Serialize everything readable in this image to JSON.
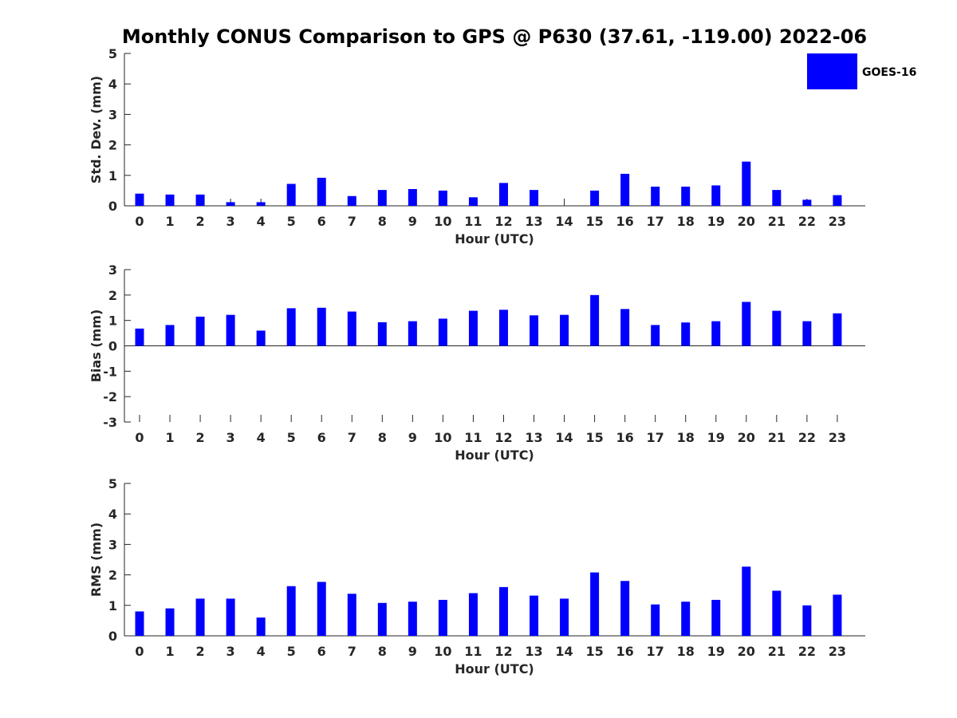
{
  "figure": {
    "title": "Monthly CONUS Comparison to GPS @ P630 (37.61, -119.00) 2022-06",
    "legend": {
      "label": "GOES-16",
      "color": "#0000ff",
      "placement": "top-right"
    }
  },
  "chart_data": [
    {
      "type": "bar",
      "xlabel": "Hour (UTC)",
      "ylabel": "Std. Dev. (mm)",
      "ylim": [
        0,
        5
      ],
      "yticks": [
        0,
        1,
        2,
        3,
        4,
        5
      ],
      "categories": [
        "0",
        "1",
        "2",
        "3",
        "4",
        "5",
        "6",
        "7",
        "8",
        "9",
        "10",
        "11",
        "12",
        "13",
        "14",
        "15",
        "16",
        "17",
        "18",
        "19",
        "20",
        "21",
        "22",
        "23"
      ],
      "series": [
        {
          "name": "GOES-16",
          "color": "#0000ff",
          "values": [
            0.4,
            0.37,
            0.37,
            0.12,
            0.12,
            0.72,
            0.92,
            0.32,
            0.52,
            0.55,
            0.5,
            0.28,
            0.75,
            0.52,
            0.0,
            0.5,
            1.05,
            0.63,
            0.63,
            0.67,
            1.45,
            0.52,
            0.2,
            0.35
          ]
        }
      ]
    },
    {
      "type": "bar",
      "xlabel": "Hour (UTC)",
      "ylabel": "Bias (mm)",
      "ylim": [
        -3,
        3
      ],
      "yticks": [
        -3,
        -2,
        -1,
        0,
        1,
        2,
        3
      ],
      "categories": [
        "0",
        "1",
        "2",
        "3",
        "4",
        "5",
        "6",
        "7",
        "8",
        "9",
        "10",
        "11",
        "12",
        "13",
        "14",
        "15",
        "16",
        "17",
        "18",
        "19",
        "20",
        "21",
        "22",
        "23"
      ],
      "series": [
        {
          "name": "GOES-16",
          "color": "#0000ff",
          "values": [
            0.68,
            0.82,
            1.15,
            1.22,
            0.6,
            1.48,
            1.5,
            1.35,
            0.93,
            0.97,
            1.07,
            1.38,
            1.42,
            1.2,
            1.22,
            2.0,
            1.45,
            0.82,
            0.92,
            0.97,
            1.73,
            1.38,
            0.97,
            1.28
          ]
        }
      ]
    },
    {
      "type": "bar",
      "xlabel": "Hour (UTC)",
      "ylabel": "RMS (mm)",
      "ylim": [
        0,
        5
      ],
      "yticks": [
        0,
        1,
        2,
        3,
        4,
        5
      ],
      "categories": [
        "0",
        "1",
        "2",
        "3",
        "4",
        "5",
        "6",
        "7",
        "8",
        "9",
        "10",
        "11",
        "12",
        "13",
        "14",
        "15",
        "16",
        "17",
        "18",
        "19",
        "20",
        "21",
        "22",
        "23"
      ],
      "series": [
        {
          "name": "GOES-16",
          "color": "#0000ff",
          "values": [
            0.8,
            0.9,
            1.22,
            1.22,
            0.6,
            1.63,
            1.77,
            1.38,
            1.08,
            1.12,
            1.18,
            1.4,
            1.6,
            1.32,
            1.22,
            2.08,
            1.8,
            1.03,
            1.12,
            1.18,
            2.27,
            1.48,
            1.0,
            1.35
          ]
        }
      ]
    }
  ]
}
